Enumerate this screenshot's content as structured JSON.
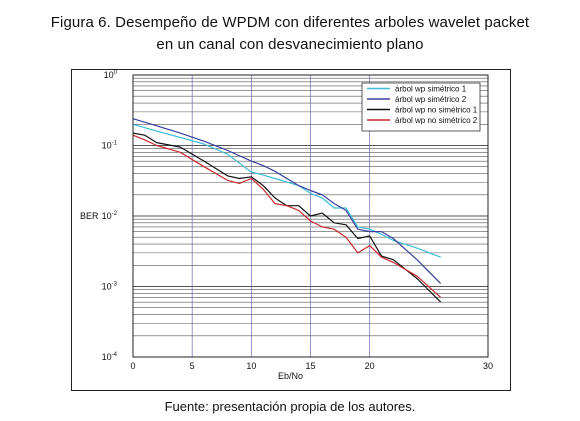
{
  "figure": {
    "title_line1": "Figura 6. Desempeño de WPDM con diferentes arboles wavelet packet",
    "title_line2": "en un canal con desvanecimiento plano",
    "source": "Fuente: presentación propia de los autores."
  },
  "chart_data": {
    "type": "line",
    "xlabel": "Eb/No",
    "ylabel": "BER",
    "xlim": [
      0,
      30
    ],
    "ylim": [
      0.0001,
      1
    ],
    "yscale": "log",
    "xticks": [
      0,
      5,
      10,
      15,
      20,
      30
    ],
    "ytick_mantissa": "10",
    "ytick_exponents": [
      "0",
      "-1",
      "-2",
      "-3",
      "-4"
    ],
    "grid": true,
    "legend_position": "top-right",
    "series": [
      {
        "name": "árbol wp simétrico 1",
        "color": "#3fbcd8",
        "x": [
          0,
          2,
          4,
          6,
          8,
          10,
          11,
          12,
          14,
          15,
          16,
          17,
          18,
          19,
          20,
          21,
          22,
          24,
          26
        ],
        "y": [
          0.2,
          0.16,
          0.13,
          0.105,
          0.075,
          0.042,
          0.038,
          0.034,
          0.027,
          0.021,
          0.018,
          0.013,
          0.013,
          0.007,
          0.0065,
          0.0055,
          0.0045,
          0.0035,
          0.0026
        ]
      },
      {
        "name": "árbol wp simétrico 2",
        "color": "#3a3f9e",
        "x": [
          0,
          2,
          4,
          6,
          8,
          10,
          11,
          12,
          14,
          15,
          16,
          17,
          18,
          19,
          20,
          21,
          22,
          24,
          26
        ],
        "y": [
          0.24,
          0.19,
          0.15,
          0.115,
          0.085,
          0.06,
          0.052,
          0.043,
          0.027,
          0.023,
          0.02,
          0.015,
          0.012,
          0.0065,
          0.006,
          0.006,
          0.0048,
          0.0024,
          0.0011
        ]
      },
      {
        "name": "árbol wp no simétrico 1",
        "color": "#111111",
        "x": [
          0,
          1,
          2,
          4,
          6,
          8,
          9,
          10,
          11,
          12,
          13,
          14,
          15,
          16,
          17,
          18,
          19,
          20,
          21,
          22,
          24,
          26
        ],
        "y": [
          0.15,
          0.14,
          0.11,
          0.095,
          0.06,
          0.037,
          0.034,
          0.036,
          0.027,
          0.018,
          0.014,
          0.014,
          0.01,
          0.011,
          0.008,
          0.0075,
          0.0048,
          0.0052,
          0.0027,
          0.0024,
          0.0013,
          0.0006
        ]
      },
      {
        "name": "árbol wp no simétrico 2",
        "color": "#c8282e",
        "x": [
          0,
          1,
          2,
          4,
          6,
          8,
          9,
          10,
          11,
          12,
          13,
          14,
          15,
          16,
          17,
          18,
          19,
          20,
          21,
          22,
          24,
          26
        ],
        "y": [
          0.14,
          0.12,
          0.1,
          0.08,
          0.05,
          0.032,
          0.029,
          0.034,
          0.024,
          0.015,
          0.014,
          0.012,
          0.0085,
          0.007,
          0.0065,
          0.005,
          0.003,
          0.0038,
          0.0026,
          0.0022,
          0.0014,
          0.0007
        ]
      }
    ]
  }
}
